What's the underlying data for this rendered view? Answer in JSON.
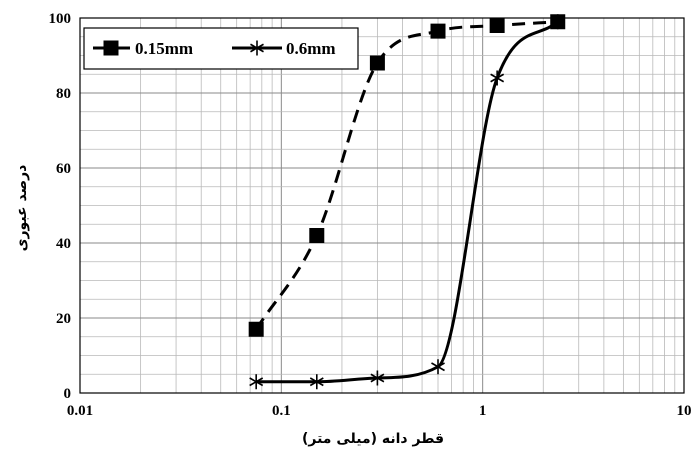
{
  "chart_data": {
    "type": "line",
    "xscale": "log",
    "xlim": [
      0.01,
      10
    ],
    "ylim": [
      0,
      100
    ],
    "x_ticks": [
      0.01,
      0.1,
      1,
      10
    ],
    "x_tick_labels": [
      "0.01",
      "0.1",
      "1",
      "10"
    ],
    "y_ticks": [
      0,
      20,
      40,
      60,
      80,
      100
    ],
    "y_tick_labels": [
      "0",
      "20",
      "40",
      "60",
      "80",
      "100"
    ],
    "xlabel": "قطر دانه (میلی متر)",
    "ylabel": "درصد عبوری",
    "grid": true,
    "legend_position": "top-left",
    "series": [
      {
        "name": "0.15mm",
        "marker": "square",
        "line_style": "dashed",
        "color": "#000000",
        "x": [
          0.075,
          0.15,
          0.3,
          0.6,
          1.18,
          2.36
        ],
        "y": [
          17,
          42,
          88,
          96.5,
          98,
          99
        ]
      },
      {
        "name": "0.6mm",
        "marker": "asterisk",
        "line_style": "solid",
        "color": "#000000",
        "x": [
          0.075,
          0.15,
          0.3,
          0.6,
          1.18,
          2.36
        ],
        "y": [
          3,
          3,
          4,
          7,
          84,
          99
        ]
      }
    ]
  }
}
